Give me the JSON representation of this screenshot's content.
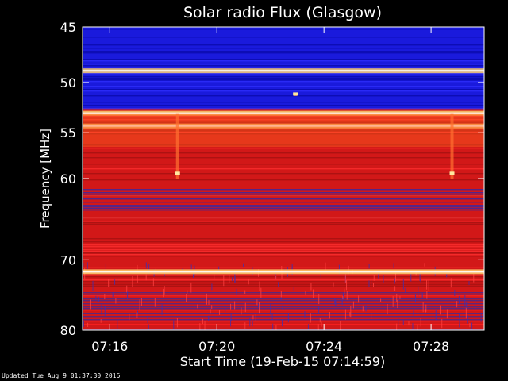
{
  "chart_data": {
    "type": "heatmap",
    "title": "Solar radio Flux (Glasgow)",
    "xlabel": "Start Time (19-Feb-15 07:14:59)",
    "ylabel": "Frequency [MHz]",
    "x_tick_labels": [
      "07:16",
      "07:20",
      "07:24",
      "07:28"
    ],
    "x_tick_minutes": [
      1.0167,
      5.0167,
      9.0167,
      13.0167
    ],
    "x_range_minutes": [
      0,
      15.0
    ],
    "y_tick_values": [
      45,
      50,
      55,
      60,
      70,
      80
    ],
    "ylim": [
      45,
      80
    ],
    "y_scale": "log",
    "colors": {
      "low": "#1a1adc",
      "mid": "#d21818",
      "high": "#ffd070",
      "peak": "#ffffff"
    },
    "bright_bands_mhz": [
      48.9,
      53.0,
      54.3,
      71.6
    ],
    "blue_region_mhz": [
      45,
      52.5
    ],
    "burst_events": [
      {
        "time_minutes": 3.55,
        "freq_mhz": 59.4,
        "extent_mhz": [
          53.0,
          60.0
        ]
      },
      {
        "time_minutes": 13.8,
        "freq_mhz": 59.4,
        "extent_mhz": [
          53.0,
          60.0
        ]
      },
      {
        "time_minutes": 7.95,
        "freq_mhz": 51.1,
        "extent_mhz": [
          51.0,
          51.3
        ]
      }
    ]
  },
  "footer": {
    "updated_text": "Updated Tue Aug  9 01:37:30 2016"
  }
}
